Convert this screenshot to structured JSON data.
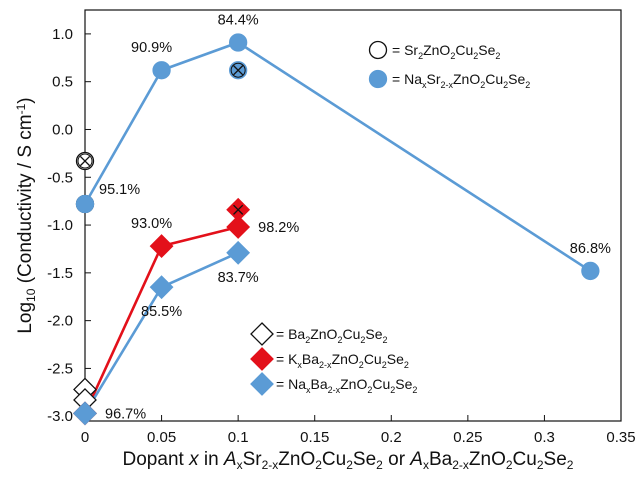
{
  "chart_data": {
    "type": "scatter",
    "ylabel_parts": {
      "pre": "Log",
      "sub": "10",
      "post": " (Conductivity / S cm",
      "sup": "-1",
      "end": ")"
    },
    "xlabel_parts": [
      {
        "t": "Dopant  ",
        "style": ""
      },
      {
        "t": "x",
        "style": "italic"
      },
      {
        "t": " in ",
        "style": ""
      },
      {
        "t": "A",
        "style": "italic"
      },
      {
        "t": "x",
        "style": "sub"
      },
      {
        "t": "Sr",
        "style": ""
      },
      {
        "t": "2-x",
        "style": "sub"
      },
      {
        "t": "ZnO",
        "style": ""
      },
      {
        "t": "2",
        "style": "sub"
      },
      {
        "t": "Cu",
        "style": ""
      },
      {
        "t": "2",
        "style": "sub"
      },
      {
        "t": "Se",
        "style": ""
      },
      {
        "t": "2",
        "style": "sub"
      },
      {
        "t": " or ",
        "style": ""
      },
      {
        "t": "A",
        "style": "italic"
      },
      {
        "t": "x",
        "style": "sub"
      },
      {
        "t": "Ba",
        "style": ""
      },
      {
        "t": "2-x",
        "style": "sub"
      },
      {
        "t": "ZnO",
        "style": ""
      },
      {
        "t": "2",
        "style": "sub"
      },
      {
        "t": "Cu",
        "style": ""
      },
      {
        "t": "2",
        "style": "sub"
      },
      {
        "t": "Se",
        "style": ""
      },
      {
        "t": "2",
        "style": "sub"
      }
    ],
    "xlim": [
      0,
      0.35
    ],
    "ylim": [
      -3.05,
      1.25
    ],
    "xticks": [
      0,
      0.05,
      0.1,
      0.15,
      0.2,
      0.25,
      0.3,
      0.35
    ],
    "xtick_labels": [
      "0",
      "0.05",
      "0.1",
      "0.15",
      "0.2",
      "0.25",
      "0.3",
      "0.35"
    ],
    "yticks": [
      1.0,
      0.5,
      0.0,
      -0.5,
      -1.0,
      -1.5,
      -2.0,
      -2.5,
      -3.0
    ],
    "ytick_labels": [
      "1.0",
      "0.5",
      "0.0",
      "-0.5",
      "-1.0",
      "-1.5",
      "-2.0",
      "-2.5",
      "-3.0"
    ],
    "grid": false,
    "series": [
      {
        "name_parts": [
          [
            "Sr",
            ""
          ],
          [
            "2",
            "sub"
          ],
          [
            "ZnO",
            ""
          ],
          [
            "2",
            "sub"
          ],
          [
            "Cu",
            ""
          ],
          [
            "2",
            "sub"
          ],
          [
            "Se",
            ""
          ],
          [
            "2",
            "sub"
          ]
        ],
        "marker": "circle",
        "filled": false,
        "color": "#111111",
        "line": false,
        "x": [
          0
        ],
        "y": [
          -0.78
        ]
      },
      {
        "name_parts": [
          [
            "Na",
            ""
          ],
          [
            "x",
            "sub"
          ],
          [
            "Sr",
            ""
          ],
          [
            "2-x",
            "sub"
          ],
          [
            "ZnO",
            ""
          ],
          [
            "2",
            "sub"
          ],
          [
            "Cu",
            ""
          ],
          [
            "2",
            "sub"
          ],
          [
            "Se",
            ""
          ],
          [
            "2",
            "sub"
          ]
        ],
        "marker": "circle",
        "filled": true,
        "color": "#5b9bd5",
        "line": true,
        "x": [
          0,
          0.05,
          0.1,
          0.33
        ],
        "y": [
          -0.78,
          0.62,
          0.91,
          -1.48
        ]
      },
      {
        "name_parts": [
          [
            "Ba",
            ""
          ],
          [
            "2",
            "sub"
          ],
          [
            "ZnO",
            ""
          ],
          [
            "2",
            "sub"
          ],
          [
            "Cu",
            ""
          ],
          [
            "2",
            "sub"
          ],
          [
            "Se",
            ""
          ],
          [
            "2",
            "sub"
          ]
        ],
        "marker": "diamond",
        "filled": false,
        "color": "#111111",
        "line": false,
        "x": [
          0
        ],
        "y": [
          -2.97
        ]
      },
      {
        "name_parts": [
          [
            "K",
            ""
          ],
          [
            "x",
            "sub"
          ],
          [
            "Ba",
            ""
          ],
          [
            "2-x",
            "sub"
          ],
          [
            "ZnO",
            ""
          ],
          [
            "2",
            "sub"
          ],
          [
            "Cu",
            ""
          ],
          [
            "2",
            "sub"
          ],
          [
            "Se",
            ""
          ],
          [
            "2",
            "sub"
          ]
        ],
        "marker": "diamond",
        "filled": true,
        "color": "#e3101a",
        "line": true,
        "x": [
          0,
          0.05,
          0.1
        ],
        "y": [
          -2.97,
          -1.22,
          -1.02
        ]
      },
      {
        "name_parts": [
          [
            "Na",
            ""
          ],
          [
            "x",
            "sub"
          ],
          [
            "Ba",
            ""
          ],
          [
            "2-x",
            "sub"
          ],
          [
            "ZnO",
            ""
          ],
          [
            "2",
            "sub"
          ],
          [
            "Cu",
            ""
          ],
          [
            "2",
            "sub"
          ],
          [
            "Se",
            ""
          ],
          [
            "2",
            "sub"
          ]
        ],
        "marker": "diamond",
        "filled": true,
        "color": "#5b9bd5",
        "line": true,
        "x": [
          0,
          0.05,
          0.1
        ],
        "y": [
          -2.97,
          -1.65,
          -1.29
        ]
      }
    ],
    "crossed_markers": [
      {
        "shape": "circle",
        "x": 0,
        "y": -0.33,
        "fill": "#ffffff"
      },
      {
        "shape": "circle",
        "x": 0.1,
        "y": 0.62,
        "fill": "#5b9bd5"
      },
      {
        "shape": "diamond",
        "x": 0.1,
        "y": -0.84,
        "fill": "#e3101a"
      }
    ],
    "extra_open_markers": [
      {
        "shape": "diamond",
        "x": 0,
        "y": -2.72
      },
      {
        "shape": "diamond",
        "x": 0,
        "y": -2.83
      }
    ],
    "annotations": [
      {
        "text": "84.4%",
        "x": 0.1,
        "y": 0.91,
        "pos": "above"
      },
      {
        "text": "90.9%",
        "x": 0.05,
        "y": 0.62,
        "pos": "above-left"
      },
      {
        "text": "95.1%",
        "x": 0,
        "y": -0.78,
        "pos": "right-up"
      },
      {
        "text": "93.0%",
        "x": 0.05,
        "y": -1.22,
        "pos": "above-left"
      },
      {
        "text": "98.2%",
        "x": 0.1,
        "y": -1.02,
        "pos": "right"
      },
      {
        "text": "83.7%",
        "x": 0.1,
        "y": -1.29,
        "pos": "below"
      },
      {
        "text": "85.5%",
        "x": 0.05,
        "y": -1.65,
        "pos": "below"
      },
      {
        "text": "96.7%",
        "x": 0,
        "y": -2.97,
        "pos": "right"
      },
      {
        "text": "86.8%",
        "x": 0.33,
        "y": -1.48,
        "pos": "above"
      }
    ],
    "legend_groups": [
      {
        "placement": "upper-right",
        "series": [
          0,
          1
        ]
      },
      {
        "placement": "lower-middle",
        "series": [
          2,
          3,
          4
        ]
      }
    ]
  }
}
